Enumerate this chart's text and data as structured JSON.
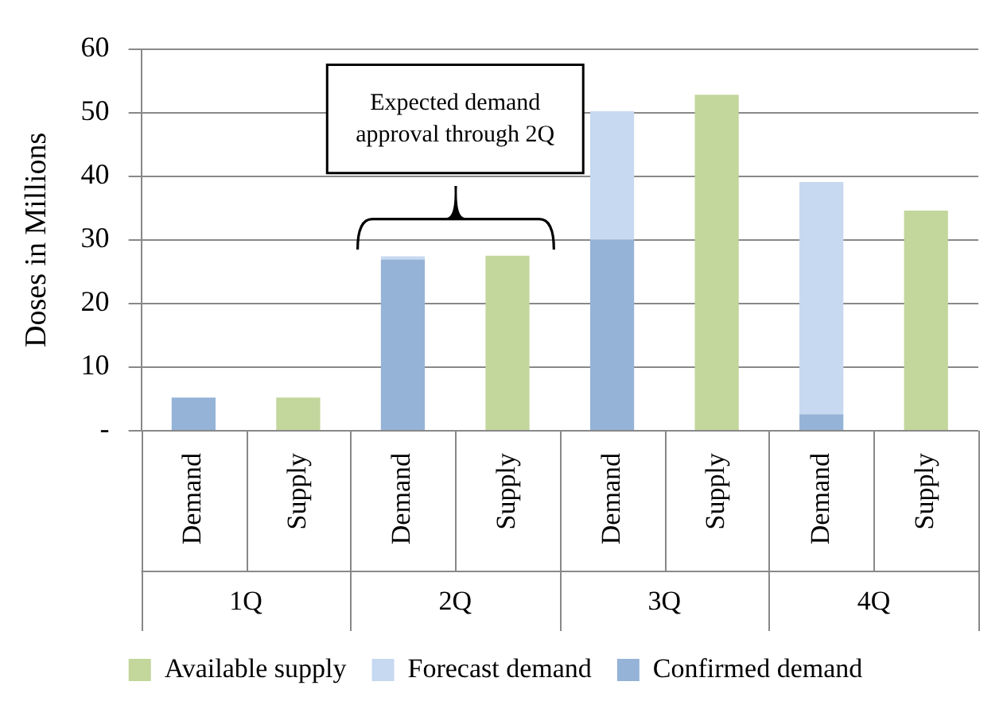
{
  "chart_data": {
    "type": "bar",
    "ylabel": "Doses in Millions",
    "categories": [
      "Demand",
      "Supply",
      "Demand",
      "Supply",
      "Demand",
      "Supply",
      "Demand",
      "Supply"
    ],
    "series": [
      {
        "name": "Confirmed demand",
        "color": "#95b3d7",
        "values": [
          5.2,
          null,
          26.9,
          null,
          30,
          null,
          2.6,
          null
        ]
      },
      {
        "name": "Forecast demand",
        "color": "#c6d9f0",
        "values": [
          null,
          null,
          0.5,
          null,
          20.2,
          null,
          36.5,
          null
        ]
      },
      {
        "name": "Available supply",
        "color": "#c3d69b",
        "values": [
          null,
          5.2,
          null,
          27.5,
          null,
          52.8,
          null,
          34.6
        ]
      }
    ],
    "stacked": true,
    "ylim": [
      0,
      60
    ],
    "yticks": [
      {
        "value": 0,
        "label": "-"
      },
      10,
      20,
      30,
      40,
      50,
      60
    ],
    "grid": "y",
    "legend": "bottom",
    "annotations": [
      "Expected demand approval through 2Q",
      "1Q",
      "2Q",
      "3Q",
      "4Q"
    ]
  }
}
